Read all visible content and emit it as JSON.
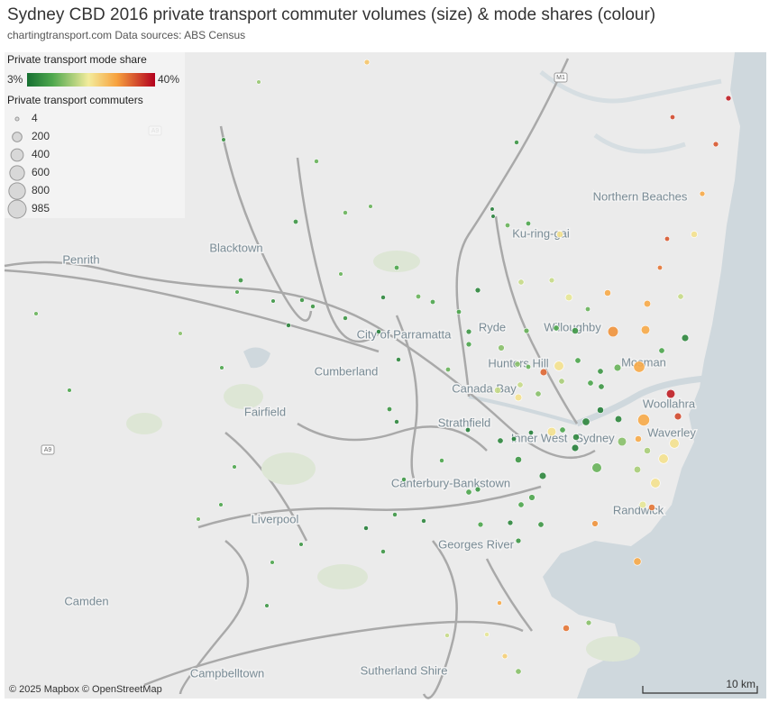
{
  "header": {
    "title": "Sydney CBD 2016 private transport commuter volumes (size) & mode shares (colour)",
    "subtitle": "chartingtransport.com  Data sources: ABS Census"
  },
  "legend": {
    "color_title": "Private transport mode share",
    "color_scale": {
      "min": {
        "value": 3,
        "label": "3%"
      },
      "max": {
        "value": 40,
        "label": "40%"
      }
    },
    "size_title": "Private transport commuters",
    "sizes": [
      4,
      200,
      400,
      600,
      800,
      985
    ]
  },
  "places": [
    "Northern Beaches",
    "Ku-ring-gai",
    "Blacktown",
    "Penrith",
    "Ryde",
    "City of Parramatta",
    "Willoughby",
    "Hunters Hill",
    "Mosman",
    "Cumberland",
    "Canada Bay",
    "Woollahra",
    "Fairfield",
    "Strathfield",
    "Inner West",
    "Sydney",
    "Waverley",
    "Canterbury-Bankstown",
    "Randwick",
    "Liverpool",
    "Georges River",
    "Camden",
    "Campbelltown",
    "Sutherland Shire"
  ],
  "road_shields": [
    "A9",
    "A9",
    "M1"
  ],
  "points": [
    {
      "commuters": 30,
      "share": 25
    },
    {
      "commuters": 10,
      "share": 15
    },
    {
      "commuters": 10,
      "share": 8
    },
    {
      "commuters": 15,
      "share": 12
    },
    {
      "commuters": 15,
      "share": 8
    },
    {
      "commuters": 15,
      "share": 12
    },
    {
      "commuters": 10,
      "share": 12
    },
    {
      "commuters": 20,
      "share": 8
    },
    {
      "commuters": 8,
      "share": 5
    },
    {
      "commuters": 8,
      "share": 5
    },
    {
      "commuters": 20,
      "share": 12
    },
    {
      "commuters": 20,
      "share": 10
    },
    {
      "commuters": 60,
      "share": 22
    },
    {
      "commuters": 40,
      "share": 18
    },
    {
      "commuters": 30,
      "share": 6
    },
    {
      "commuters": 30,
      "share": 18
    },
    {
      "commuters": 80,
      "share": 20
    },
    {
      "commuters": 60,
      "share": 28
    },
    {
      "commuters": 70,
      "share": 28
    },
    {
      "commuters": 250,
      "share": 30
    },
    {
      "commuters": 150,
      "share": 28
    },
    {
      "commuters": 20,
      "share": 12
    },
    {
      "commuters": 60,
      "share": 8
    },
    {
      "commuters": 40,
      "share": 10
    },
    {
      "commuters": 30,
      "share": 12
    },
    {
      "commuters": 50,
      "share": 14
    },
    {
      "commuters": 30,
      "share": 10
    },
    {
      "commuters": 40,
      "share": 14
    },
    {
      "commuters": 20,
      "share": 12
    },
    {
      "commuters": 80,
      "share": 33
    },
    {
      "commuters": 200,
      "share": 22
    },
    {
      "commuters": 40,
      "share": 10
    },
    {
      "commuters": 40,
      "share": 8
    },
    {
      "commuters": 80,
      "share": 12
    },
    {
      "commuters": 300,
      "share": 28
    },
    {
      "commuters": 40,
      "share": 18
    },
    {
      "commuters": 60,
      "share": 18
    },
    {
      "commuters": 80,
      "share": 22
    },
    {
      "commuters": 40,
      "share": 14
    },
    {
      "commuters": 40,
      "share": 16
    },
    {
      "commuters": 40,
      "share": 10
    },
    {
      "commuters": 40,
      "share": 8
    },
    {
      "commuters": 60,
      "share": 5
    },
    {
      "commuters": 70,
      "share": 6
    },
    {
      "commuters": 350,
      "share": 28
    },
    {
      "commuters": 150,
      "share": 38
    },
    {
      "commuters": 80,
      "share": 35
    },
    {
      "commuters": 100,
      "share": 6
    },
    {
      "commuters": 60,
      "share": 6
    },
    {
      "commuters": 40,
      "share": 10
    },
    {
      "commuters": 150,
      "share": 22
    },
    {
      "commuters": 80,
      "share": 5
    },
    {
      "commuters": 200,
      "share": 12
    },
    {
      "commuters": 150,
      "share": 14
    },
    {
      "commuters": 60,
      "share": 28
    },
    {
      "commuters": 60,
      "share": 16
    },
    {
      "commuters": 200,
      "share": 22
    },
    {
      "commuters": 200,
      "share": 22
    },
    {
      "commuters": 70,
      "share": 16
    },
    {
      "commuters": 200,
      "share": 22
    },
    {
      "commuters": 80,
      "share": 20
    },
    {
      "commuters": 60,
      "share": 32
    },
    {
      "commuters": 50,
      "share": 30
    },
    {
      "commuters": 100,
      "share": 28
    },
    {
      "commuters": 80,
      "share": 6
    },
    {
      "commuters": 60,
      "share": 8
    },
    {
      "commuters": 40,
      "share": 6
    },
    {
      "commuters": 20,
      "share": 5
    },
    {
      "commuters": 20,
      "share": 5
    },
    {
      "commuters": 20,
      "share": 5
    },
    {
      "commuters": 50,
      "share": 10
    },
    {
      "commuters": 30,
      "share": 6
    },
    {
      "commuters": 40,
      "share": 8
    },
    {
      "commuters": 30,
      "share": 8
    },
    {
      "commuters": 30,
      "share": 10
    },
    {
      "commuters": 40,
      "share": 10
    },
    {
      "commuters": 40,
      "share": 14
    },
    {
      "commuters": 30,
      "share": 24
    },
    {
      "commuters": 60,
      "share": 32
    },
    {
      "commuters": 30,
      "share": 14
    },
    {
      "commuters": 60,
      "share": 22
    },
    {
      "commuters": 30,
      "share": 38
    },
    {
      "commuters": 30,
      "share": 34
    },
    {
      "commuters": 20,
      "share": 35
    },
    {
      "commuters": 30,
      "share": 28
    },
    {
      "commuters": 20,
      "share": 34
    },
    {
      "commuters": 20,
      "share": 32
    },
    {
      "commuters": 40,
      "share": 18
    },
    {
      "commuters": 80,
      "share": 6
    },
    {
      "commuters": 40,
      "share": 10
    },
    {
      "commuters": 20,
      "share": 10
    },
    {
      "commuters": 20,
      "share": 12
    },
    {
      "commuters": 20,
      "share": 10
    },
    {
      "commuters": 20,
      "share": 12
    },
    {
      "commuters": 30,
      "share": 8
    },
    {
      "commuters": 20,
      "share": 10
    },
    {
      "commuters": 15,
      "share": 6
    },
    {
      "commuters": 15,
      "share": 5
    },
    {
      "commuters": 15,
      "share": 8
    },
    {
      "commuters": 20,
      "share": 8
    },
    {
      "commuters": 15,
      "share": 6
    },
    {
      "commuters": 15,
      "share": 8
    },
    {
      "commuters": 15,
      "share": 8
    },
    {
      "commuters": 10,
      "share": 12
    },
    {
      "commuters": 15,
      "share": 6
    },
    {
      "commuters": 10,
      "share": 10
    },
    {
      "commuters": 10,
      "share": 8
    },
    {
      "commuters": 10,
      "share": 12
    },
    {
      "commuters": 10,
      "share": 10
    },
    {
      "commuters": 10,
      "share": 14
    },
    {
      "commuters": 10,
      "share": 10
    },
    {
      "commuters": 20,
      "share": 8
    },
    {
      "commuters": 15,
      "share": 6
    },
    {
      "commuters": 40,
      "share": 10
    },
    {
      "commuters": 30,
      "share": 8
    },
    {
      "commuters": 15,
      "share": 10
    },
    {
      "commuters": 15,
      "share": 8
    },
    {
      "commuters": 15,
      "share": 5
    },
    {
      "commuters": 15,
      "share": 8
    },
    {
      "commuters": 15,
      "share": 6
    },
    {
      "commuters": 15,
      "share": 8
    },
    {
      "commuters": 10,
      "share": 8
    },
    {
      "commuters": 10,
      "share": 10
    },
    {
      "commuters": 10,
      "share": 8
    },
    {
      "commuters": 15,
      "share": 28
    },
    {
      "commuters": 15,
      "share": 20
    },
    {
      "commuters": 15,
      "share": 18
    },
    {
      "commuters": 10,
      "share": 10
    },
    {
      "commuters": 10,
      "share": 12
    },
    {
      "commuters": 10,
      "share": 10
    }
  ],
  "attribution": "© 2025 Mapbox © OpenStreetMap",
  "scale_bar": "10 km"
}
